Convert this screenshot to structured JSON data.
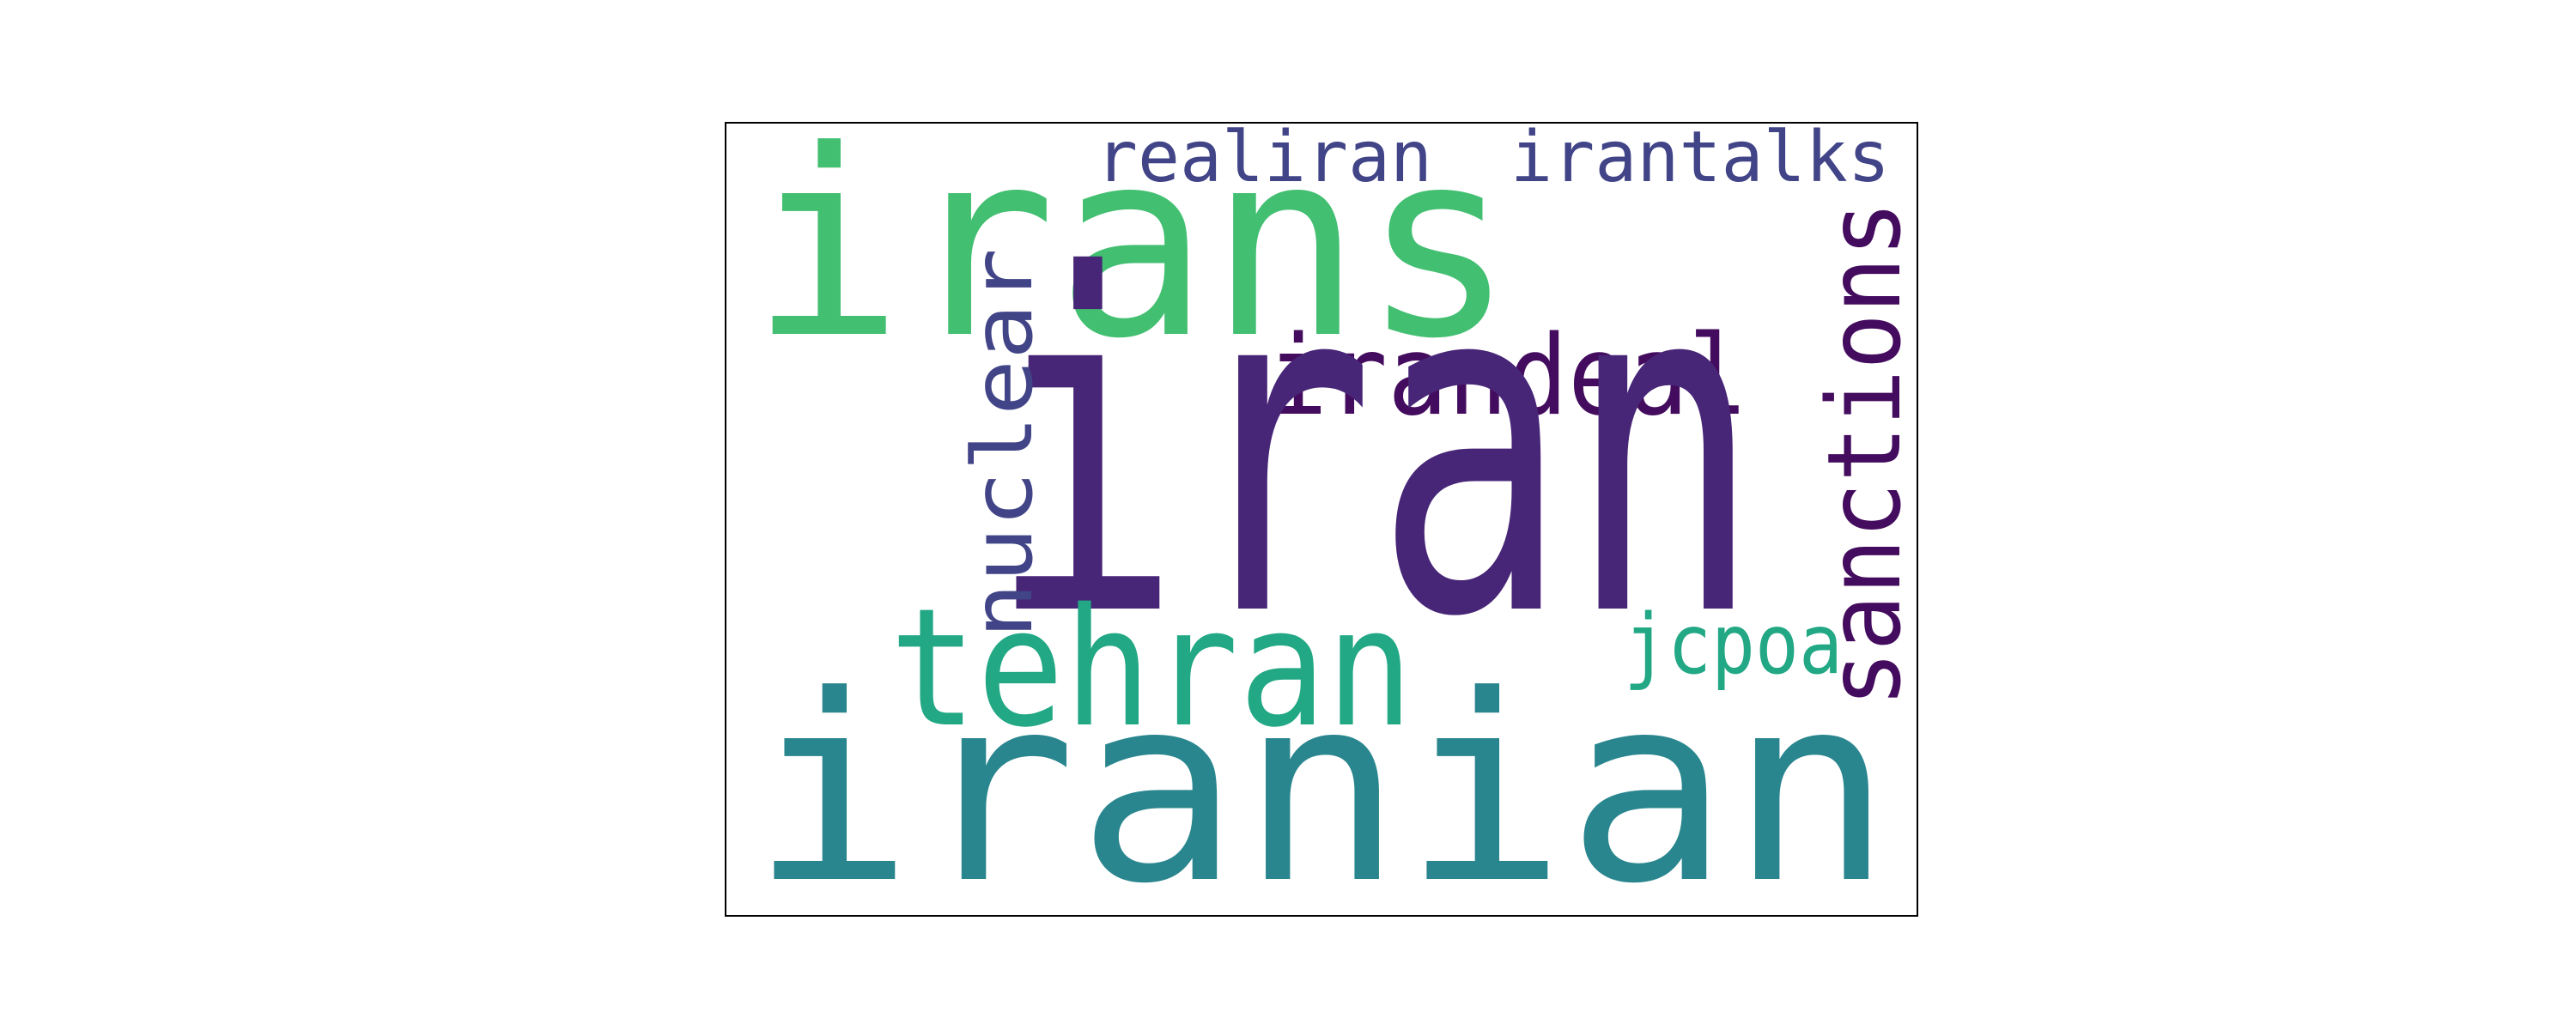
{
  "wordcloud": {
    "words": [
      {
        "text": "iran",
        "color": "#482677"
      },
      {
        "text": "irans",
        "color": "#43BF71"
      },
      {
        "text": "iranian",
        "color": "#2A868E"
      },
      {
        "text": "tehran",
        "color": "#22A884"
      },
      {
        "text": "irandeal",
        "color": "#440C5E"
      },
      {
        "text": "sanctions",
        "color": "#440C5E"
      },
      {
        "text": "nuclear",
        "color": "#414487"
      },
      {
        "text": "realiran",
        "color": "#414487"
      },
      {
        "text": "irantalks",
        "color": "#414487"
      },
      {
        "text": "jcpoa",
        "color": "#22A884"
      }
    ]
  }
}
